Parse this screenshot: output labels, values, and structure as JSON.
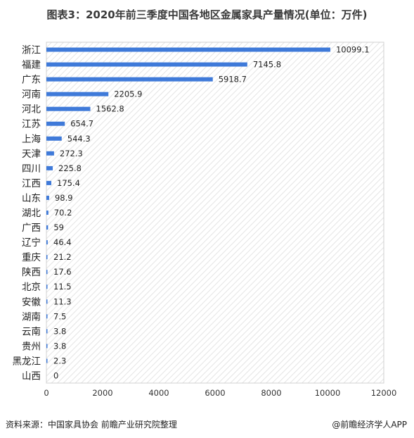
{
  "chart_data": {
    "type": "bar",
    "orientation": "horizontal",
    "title": "图表3：2020年前三季度中国各地区金属家具产量情况(单位：万件)",
    "categories": [
      "浙江",
      "福建",
      "广东",
      "河南",
      "河北",
      "江苏",
      "上海",
      "天津",
      "四川",
      "江西",
      "山东",
      "湖北",
      "广西",
      "辽宁",
      "重庆",
      "陕西",
      "北京",
      "安徽",
      "湖南",
      "云南",
      "贵州",
      "黑龙江",
      "山西"
    ],
    "values": [
      10099.1,
      7145.8,
      5918.7,
      2205.9,
      1562.8,
      654.7,
      544.3,
      272.3,
      225.8,
      175.4,
      98.9,
      70.2,
      59,
      46.4,
      21.2,
      17.6,
      11.5,
      11.3,
      7.5,
      3.8,
      3.8,
      2.3,
      0
    ],
    "value_labels": [
      "10099.1",
      "7145.8",
      "5918.7",
      "2205.9",
      "1562.8",
      "654.7",
      "544.3",
      "272.3",
      "225.8",
      "175.4",
      "98.9",
      "70.2",
      "59",
      "46.4",
      "21.2",
      "17.6",
      "11.5",
      "11.3",
      "7.5",
      "3.8",
      "3.8",
      "2.3",
      "0"
    ],
    "xlim": [
      0,
      12000
    ],
    "xticks": [
      0,
      2000,
      4000,
      6000,
      8000,
      10000,
      12000
    ],
    "grid": false,
    "legend": "none",
    "bar_color": "#3f7ad9"
  },
  "footer": {
    "source": "资料来源：中国家具协会 前瞻产业研究院整理",
    "brand": "@前瞻经济学人APP"
  }
}
